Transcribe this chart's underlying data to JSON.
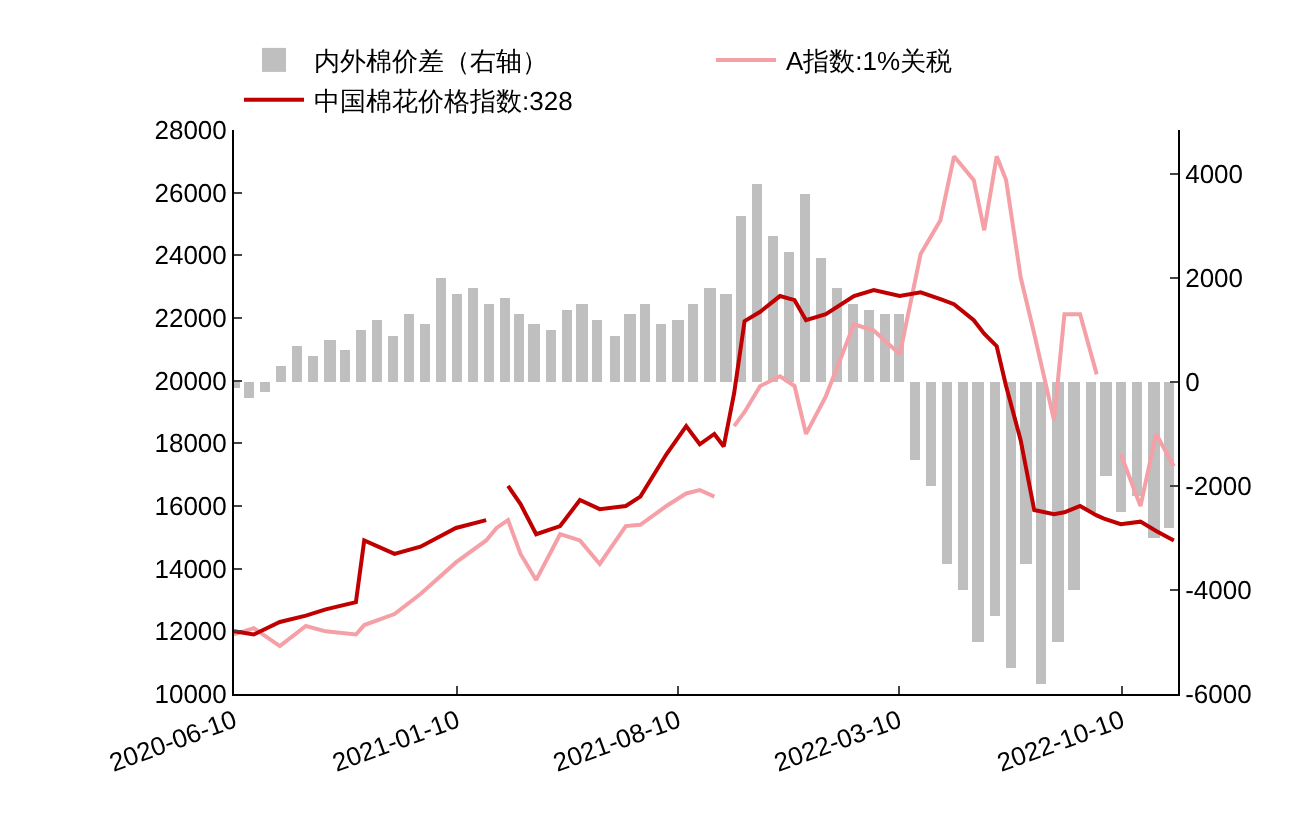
{
  "chart_data": {
    "type": "line",
    "legend": "top",
    "xlim": [
      "2020-06-10",
      "2022-12-03"
    ],
    "xticks": [
      {
        "value": "2020-06-10",
        "label": "2020-06-10"
      },
      {
        "value": "2021-01-10",
        "label": "2021-01-10"
      },
      {
        "value": "2021-08-10",
        "label": "2021-08-10"
      },
      {
        "value": "2022-03-10",
        "label": "2022-03-10"
      },
      {
        "value": "2022-10-10",
        "label": "2022-10-10"
      }
    ],
    "ylim": [
      10000,
      28000
    ],
    "yticks": [
      10000,
      12000,
      14000,
      16000,
      18000,
      20000,
      22000,
      24000,
      26000,
      28000
    ],
    "y2lim": [
      -6000,
      4850
    ],
    "y2ticks": [
      -6000,
      -4000,
      -2000,
      0,
      2000,
      4000
    ],
    "x": [
      "2020-06-10",
      "2020-06-29",
      "2020-07-24",
      "2020-08-18",
      "2020-09-06",
      "2020-10-05",
      "2020-10-13",
      "2020-11-11",
      "2020-12-06",
      "2021-01-09",
      "2021-02-07",
      "2021-02-17",
      "2021-02-28",
      "2021-03-12",
      "2021-03-27",
      "2021-04-19",
      "2021-05-08",
      "2021-05-27",
      "2021-06-21",
      "2021-07-05",
      "2021-07-30",
      "2021-08-18",
      "2021-08-31",
      "2021-09-14",
      "2021-09-23",
      "2021-10-03",
      "2021-10-13",
      "2021-10-28",
      "2021-11-16",
      "2021-11-30",
      "2021-12-11",
      "2021-12-30",
      "2022-01-26",
      "2022-02-14",
      "2022-03-11",
      "2022-03-31",
      "2022-04-19",
      "2022-05-02",
      "2022-05-21",
      "2022-05-31",
      "2022-06-12",
      "2022-06-21",
      "2022-07-05",
      "2022-07-18",
      "2022-08-06",
      "2022-08-16",
      "2022-08-31",
      "2022-09-16",
      "2022-09-23",
      "2022-10-09",
      "2022-10-28",
      "2022-11-12",
      "2022-11-29"
    ],
    "series": [
      {
        "name": "内外棉价差（右轴）",
        "type": "bar",
        "axis": "y2",
        "color": "#bfbfbf",
        "x": [
          "2020-06-10",
          "2020-06-25",
          "2020-07-10",
          "2020-07-25",
          "2020-08-10",
          "2020-08-25",
          "2020-09-10",
          "2020-09-25",
          "2020-10-10",
          "2020-10-25",
          "2020-11-10",
          "2020-11-25",
          "2020-12-10",
          "2020-12-25",
          "2021-01-10",
          "2021-01-25",
          "2021-02-10",
          "2021-02-25",
          "2021-03-10",
          "2021-03-25",
          "2021-04-10",
          "2021-04-25",
          "2021-05-10",
          "2021-05-25",
          "2021-06-10",
          "2021-06-25",
          "2021-07-10",
          "2021-07-25",
          "2021-08-10",
          "2021-08-25",
          "2021-09-10",
          "2021-09-25",
          "2021-10-10",
          "2021-10-25",
          "2021-11-10",
          "2021-11-25",
          "2021-12-10",
          "2021-12-25",
          "2022-01-10",
          "2022-01-25",
          "2022-02-10",
          "2022-02-25",
          "2022-03-10",
          "2022-03-25",
          "2022-04-10",
          "2022-04-25",
          "2022-05-10",
          "2022-05-25",
          "2022-06-10",
          "2022-06-25",
          "2022-07-10",
          "2022-07-25",
          "2022-08-10",
          "2022-08-25",
          "2022-09-10",
          "2022-09-25",
          "2022-10-10",
          "2022-10-25",
          "2022-11-10",
          "2022-11-25"
        ],
        "values": [
          -100,
          -300,
          -200,
          300,
          700,
          500,
          800,
          600,
          1000,
          1200,
          900,
          1300,
          1100,
          2000,
          1700,
          1800,
          1500,
          1600,
          1300,
          1100,
          1000,
          1400,
          1500,
          1200,
          900,
          1300,
          1500,
          1100,
          1200,
          1500,
          1800,
          1700,
          3200,
          3800,
          2800,
          2500,
          3600,
          2400,
          1800,
          1500,
          1400,
          1300,
          1300,
          -1500,
          -2000,
          -3500,
          -4000,
          -5000,
          -4500,
          -5500,
          -3500,
          -5800,
          -5000,
          -4000,
          -2500,
          -1800,
          -2500,
          -2200,
          -3000,
          -2800
        ]
      },
      {
        "name": "A指数:1%关税",
        "color": "#f4a0a6",
        "values": [
          11900,
          12100,
          11530,
          12170,
          12000,
          11900,
          12200,
          12550,
          13190,
          14200,
          14900,
          15300,
          15550,
          14470,
          13640,
          15100,
          14900,
          14150,
          15360,
          15400,
          16000,
          16400,
          16510,
          16300,
          null,
          18550,
          19000,
          19830,
          20140,
          19830,
          18300,
          19500,
          21800,
          21600,
          20840,
          24040,
          25120,
          27160,
          26400,
          24800,
          27160,
          26400,
          23300,
          21500,
          18740,
          22120,
          22120,
          20200,
          null,
          17650,
          16000,
          18300,
          17270
        ]
      },
      {
        "name": "中国棉花价格指数:328",
        "color": "#c00000",
        "values": [
          12000,
          11900,
          12300,
          12500,
          12700,
          12930,
          14900,
          14470,
          14700,
          15300,
          15550,
          null,
          16640,
          16060,
          15100,
          15360,
          16190,
          15900,
          16000,
          16300,
          17650,
          18550,
          17970,
          18300,
          17900,
          19600,
          21900,
          22200,
          22700,
          22570,
          21930,
          22120,
          22700,
          22890,
          22700,
          22820,
          22600,
          22440,
          21930,
          21500,
          21100,
          19830,
          18100,
          15870,
          15740,
          15800,
          16000,
          15700,
          15600,
          15420,
          15500,
          15200,
          14900
        ]
      }
    ]
  }
}
